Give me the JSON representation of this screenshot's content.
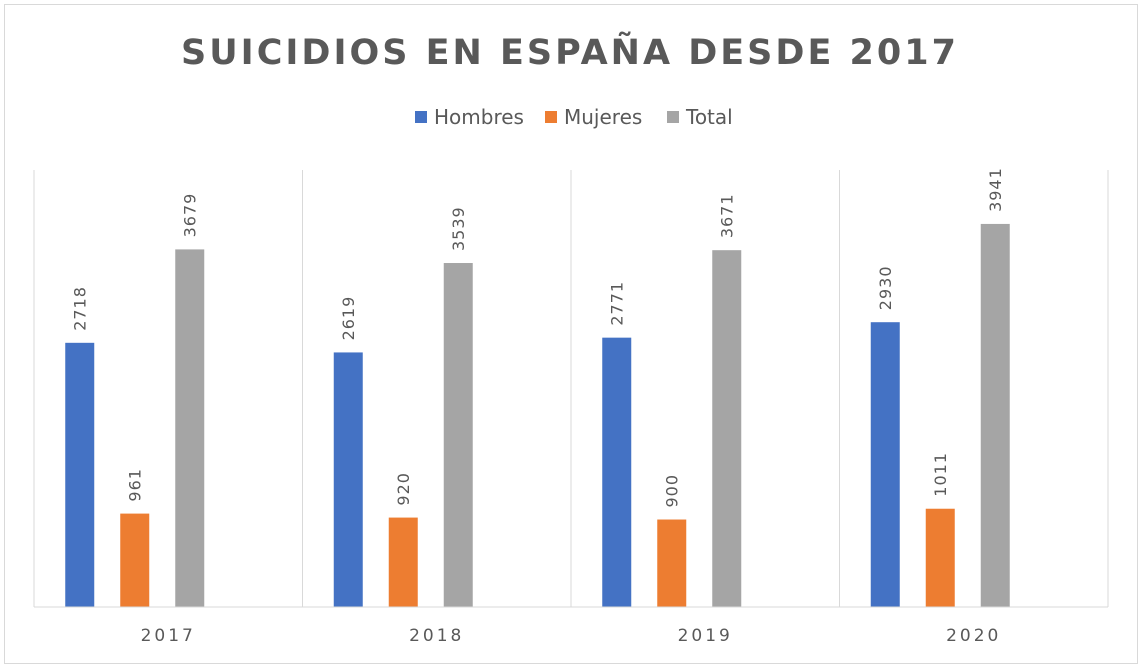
{
  "chart_data": {
    "type": "bar",
    "title": "SUICIDIOS EN ESPAÑA DESDE 2017",
    "categories": [
      "2017",
      "2018",
      "2019",
      "2020"
    ],
    "series": [
      {
        "name": "Hombres",
        "color": "#4472C4",
        "values": [
          2718,
          2619,
          2771,
          2930
        ]
      },
      {
        "name": "Mujeres",
        "color": "#ED7D31",
        "values": [
          961,
          920,
          900,
          1011
        ]
      },
      {
        "name": "Total",
        "color": "#A5A5A5",
        "values": [
          3679,
          3539,
          3671,
          3941
        ]
      }
    ],
    "ylim": [
      0,
      5000
    ],
    "legend_position": "top",
    "grid": false,
    "data_labels": true
  }
}
